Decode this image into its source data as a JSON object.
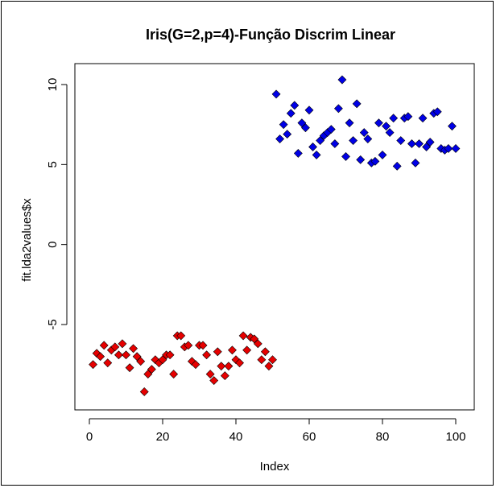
{
  "chart_data": {
    "type": "scatter",
    "title": "Iris(G=2,p=4)-Função Discrim Linear",
    "xlabel": "Index",
    "ylabel": "fit.lda2values$x",
    "xlim": [
      0,
      100
    ],
    "ylim": [
      -10,
      10
    ],
    "x_ticks": [
      "0",
      "20",
      "40",
      "60",
      "80",
      "100"
    ],
    "y_ticks": [
      "-5",
      "0",
      "5",
      "10"
    ],
    "grid": false,
    "marker": "diamond",
    "series": [
      {
        "color": "#e60000",
        "x": [
          1,
          2,
          3,
          4,
          5,
          6,
          7,
          8,
          9,
          10,
          11,
          12,
          13,
          14,
          15,
          16,
          17,
          18,
          19,
          20,
          21,
          22,
          23,
          24,
          25,
          26,
          27,
          28,
          29,
          30,
          31,
          32,
          33,
          34,
          35,
          36,
          37,
          38,
          39,
          40,
          41,
          42,
          43,
          44,
          45,
          46,
          47,
          48,
          49,
          50
        ],
        "y": [
          -7.5,
          -6.8,
          -7.0,
          -6.3,
          -7.4,
          -6.6,
          -6.4,
          -6.9,
          -6.2,
          -6.9,
          -7.7,
          -6.5,
          -7.0,
          -7.3,
          -9.2,
          -8.1,
          -7.8,
          -7.2,
          -7.4,
          -7.2,
          -6.9,
          -6.9,
          -8.1,
          -5.7,
          -5.7,
          -6.4,
          -6.3,
          -7.3,
          -7.5,
          -6.3,
          -6.3,
          -6.9,
          -8.1,
          -8.5,
          -6.7,
          -7.6,
          -8.2,
          -7.6,
          -6.6,
          -7.2,
          -7.4,
          -5.7,
          -6.6,
          -5.8,
          -5.9,
          -6.2,
          -7.2,
          -6.7,
          -7.6,
          -7.2
        ]
      },
      {
        "color": "#0000e6",
        "x": [
          51,
          52,
          53,
          54,
          55,
          56,
          57,
          58,
          59,
          60,
          61,
          62,
          63,
          64,
          65,
          66,
          67,
          68,
          69,
          70,
          71,
          72,
          73,
          74,
          75,
          76,
          77,
          78,
          79,
          80,
          81,
          82,
          83,
          84,
          85,
          86,
          87,
          88,
          89,
          90,
          91,
          92,
          93,
          94,
          95,
          96,
          97,
          98,
          99,
          100
        ],
        "y": [
          9.4,
          6.6,
          7.5,
          6.9,
          8.2,
          8.7,
          5.7,
          7.6,
          7.3,
          8.4,
          6.1,
          5.6,
          6.5,
          6.8,
          7.0,
          7.2,
          6.3,
          8.5,
          10.3,
          5.5,
          7.6,
          6.5,
          8.8,
          5.3,
          7.0,
          6.6,
          5.1,
          5.2,
          7.6,
          5.6,
          7.4,
          7.0,
          7.9,
          4.9,
          6.5,
          7.9,
          8.0,
          6.3,
          5.1,
          6.3,
          7.9,
          6.1,
          6.4,
          8.2,
          8.3,
          6.0,
          5.9,
          6.0,
          7.4,
          6.0
        ]
      }
    ]
  }
}
